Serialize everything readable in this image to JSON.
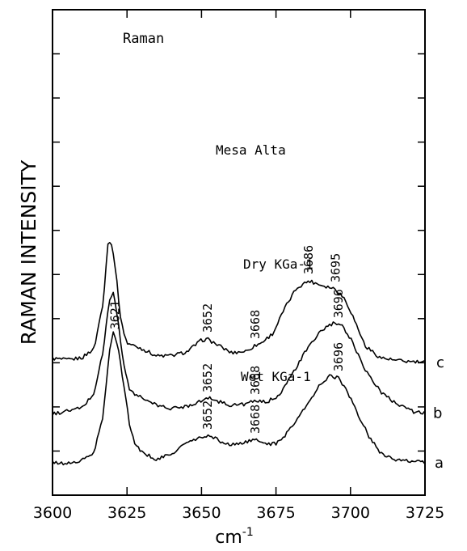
{
  "chart_data": {
    "type": "line",
    "title": "Raman",
    "xlabel": "cm",
    "xlabel_superscript": "-1",
    "ylabel": "RAMAN INTENSITY",
    "xlim": [
      3600,
      3725
    ],
    "x_ticks": [
      3600,
      3625,
      3650,
      3675,
      3700,
      3725
    ],
    "y_ticks_count": 10,
    "grid": false,
    "series": [
      {
        "name": "Mesa Alta",
        "tag": "c",
        "offset": 2.6,
        "peak_labels": [
          "3652",
          "3668",
          "3686",
          "3695"
        ],
        "points": [
          [
            3600,
            0.1
          ],
          [
            3605,
            0.06
          ],
          [
            3610,
            0.12
          ],
          [
            3614,
            0.35
          ],
          [
            3617,
            1.5
          ],
          [
            3618.5,
            2.9
          ],
          [
            3619.5,
            3.05
          ],
          [
            3621,
            2.4
          ],
          [
            3623,
            1.0
          ],
          [
            3625,
            0.48
          ],
          [
            3630,
            0.34
          ],
          [
            3635,
            0.16
          ],
          [
            3640,
            0.17
          ],
          [
            3645,
            0.26
          ],
          [
            3650,
            0.55
          ],
          [
            3652,
            0.58
          ],
          [
            3655,
            0.45
          ],
          [
            3660,
            0.24
          ],
          [
            3665,
            0.28
          ],
          [
            3668,
            0.42
          ],
          [
            3670,
            0.48
          ],
          [
            3674,
            0.72
          ],
          [
            3678,
            1.35
          ],
          [
            3682,
            1.85
          ],
          [
            3686,
            2.02
          ],
          [
            3690,
            1.92
          ],
          [
            3695,
            1.82
          ],
          [
            3698,
            1.58
          ],
          [
            3700,
            1.28
          ],
          [
            3705,
            0.4
          ],
          [
            3710,
            0.12
          ],
          [
            3715,
            0.05
          ],
          [
            3720,
            0.02
          ],
          [
            3725,
            0.0
          ]
        ]
      },
      {
        "name": "Dry KGa-1",
        "tag": "b",
        "offset": 1.3,
        "peak_labels": [
          "3652",
          "3668",
          "3696"
        ],
        "points": [
          [
            3600,
            0.02
          ],
          [
            3605,
            0.1
          ],
          [
            3610,
            0.18
          ],
          [
            3614,
            0.55
          ],
          [
            3617,
            1.6
          ],
          [
            3619,
            2.8
          ],
          [
            3620.5,
            3.06
          ],
          [
            3622,
            2.3
          ],
          [
            3624,
            1.2
          ],
          [
            3626,
            0.6
          ],
          [
            3630,
            0.42
          ],
          [
            3635,
            0.24
          ],
          [
            3640,
            0.16
          ],
          [
            3645,
            0.22
          ],
          [
            3650,
            0.36
          ],
          [
            3653,
            0.42
          ],
          [
            3656,
            0.33
          ],
          [
            3660,
            0.24
          ],
          [
            3665,
            0.28
          ],
          [
            3668,
            0.34
          ],
          [
            3672,
            0.32
          ],
          [
            3676,
            0.5
          ],
          [
            3680,
            0.95
          ],
          [
            3685,
            1.58
          ],
          [
            3690,
            2.08
          ],
          [
            3694,
            2.26
          ],
          [
            3697,
            2.22
          ],
          [
            3700,
            1.9
          ],
          [
            3705,
            1.12
          ],
          [
            3710,
            0.58
          ],
          [
            3715,
            0.3
          ],
          [
            3718,
            0.22
          ],
          [
            3721,
            0.08
          ],
          [
            3725,
            0.05
          ]
        ]
      },
      {
        "name": "Wet KGa-1",
        "tag": "a",
        "offset": 0.0,
        "peak_labels": [
          "3621",
          "3652",
          "3668",
          "3696"
        ],
        "points": [
          [
            3600,
            0.12
          ],
          [
            3605,
            0.1
          ],
          [
            3610,
            0.18
          ],
          [
            3614,
            0.38
          ],
          [
            3617,
            1.3
          ],
          [
            3619,
            2.8
          ],
          [
            3620.5,
            3.38
          ],
          [
            3622,
            3.0
          ],
          [
            3624,
            2.0
          ],
          [
            3626,
            1.0
          ],
          [
            3628,
            0.54
          ],
          [
            3630,
            0.38
          ],
          [
            3635,
            0.2
          ],
          [
            3640,
            0.34
          ],
          [
            3645,
            0.62
          ],
          [
            3650,
            0.74
          ],
          [
            3653,
            0.8
          ],
          [
            3657,
            0.62
          ],
          [
            3660,
            0.56
          ],
          [
            3665,
            0.64
          ],
          [
            3668,
            0.68
          ],
          [
            3672,
            0.6
          ],
          [
            3675,
            0.58
          ],
          [
            3678,
            0.8
          ],
          [
            3682,
            1.2
          ],
          [
            3686,
            1.6
          ],
          [
            3690,
            2.08
          ],
          [
            3693,
            2.27
          ],
          [
            3696,
            2.22
          ],
          [
            3699,
            1.86
          ],
          [
            3702,
            1.4
          ],
          [
            3706,
            0.8
          ],
          [
            3710,
            0.38
          ],
          [
            3715,
            0.18
          ],
          [
            3720,
            0.16
          ],
          [
            3725,
            0.12
          ]
        ]
      }
    ]
  }
}
